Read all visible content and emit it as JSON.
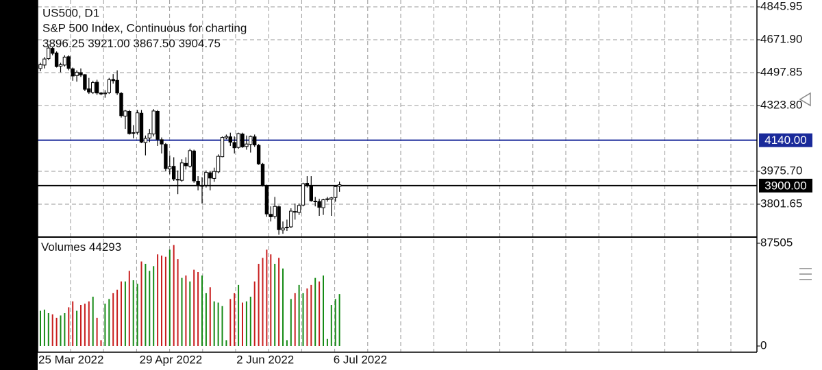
{
  "chart_data": {
    "type": "candlestick",
    "title": "US500, D1",
    "subtitle": "S&P 500 Index, Continuous for charting",
    "last_labels": [
      "3896.25",
      "3921.00",
      "3867.50",
      "3904.75"
    ],
    "up_color": "#ffffff",
    "down_color": "#000000",
    "categories": [
      "25 Mar 2022",
      null,
      null,
      null,
      null,
      null,
      null,
      null,
      null,
      null,
      null,
      null,
      null,
      null,
      null,
      null,
      null,
      null,
      null,
      null,
      null,
      null,
      null,
      null,
      null,
      "29 Apr 2022",
      null,
      null,
      null,
      null,
      null,
      null,
      null,
      null,
      null,
      null,
      null,
      null,
      null,
      null,
      null,
      null,
      null,
      null,
      null,
      null,
      null,
      null,
      null,
      "2 Jun 2022",
      null,
      null,
      null,
      null,
      null,
      null,
      null,
      null,
      null,
      null,
      null,
      null,
      null,
      null,
      null,
      null,
      null,
      null,
      null,
      null,
      null,
      null,
      null,
      "6 Jul 2022",
      null
    ],
    "open": [
      4520,
      4538,
      4572,
      4626,
      4602,
      4532,
      4538,
      4582,
      4518,
      4482,
      4498,
      4487,
      4412,
      4393,
      4447,
      4390,
      4386,
      4392,
      4462,
      4457,
      4388,
      4268,
      4293,
      4177,
      4182,
      4283,
      4128,
      4152,
      4173,
      4293,
      4143,
      4118,
      3988,
      4002,
      3933,
      3928,
      4018,
      4003,
      4083,
      3923,
      3898,
      3902,
      3968,
      3938,
      3973,
      4053,
      4153,
      4158,
      4128,
      4102,
      4173,
      4107,
      4118,
      4158,
      4113,
      4013,
      3898,
      3748,
      3737,
      3788,
      3665,
      3677,
      3682,
      3763,
      3758,
      3797,
      3912,
      3898,
      3818,
      3816,
      3783,
      3827,
      3828,
      3837,
      3896.25
    ],
    "high": [
      4550,
      4580,
      4640,
      4635,
      4610,
      4550,
      4590,
      4590,
      4525,
      4510,
      4520,
      4490,
      4470,
      4455,
      4460,
      4395,
      4405,
      4470,
      4490,
      4510,
      4395,
      4300,
      4300,
      4220,
      4300,
      4300,
      4165,
      4200,
      4305,
      4300,
      4155,
      4125,
      4060,
      4050,
      3980,
      4040,
      4050,
      4095,
      4090,
      3950,
      3945,
      3980,
      3975,
      3995,
      4065,
      4160,
      4170,
      4180,
      4160,
      4180,
      4180,
      4165,
      4165,
      4170,
      4120,
      4020,
      3905,
      3790,
      3840,
      3795,
      3710,
      3720,
      3780,
      3805,
      3805,
      3915,
      3950,
      3950,
      3840,
      3830,
      3830,
      3840,
      3840,
      3900,
      3921
    ],
    "low": [
      4505,
      4520,
      4565,
      4590,
      4525,
      4500,
      4530,
      4510,
      4455,
      4450,
      4475,
      4400,
      4385,
      4385,
      4380,
      4378,
      4365,
      4385,
      4440,
      4380,
      4260,
      4200,
      4170,
      4150,
      4170,
      4125,
      4060,
      4130,
      4160,
      4110,
      4070,
      3975,
      3960,
      3925,
      3855,
      3920,
      3985,
      3995,
      3915,
      3875,
      3805,
      3890,
      3875,
      3920,
      3965,
      4050,
      4145,
      4110,
      4070,
      4095,
      4100,
      4090,
      4075,
      4105,
      4010,
      3895,
      3735,
      3710,
      3725,
      3640,
      3645,
      3660,
      3675,
      3720,
      3745,
      3790,
      3890,
      3815,
      3790,
      3740,
      3745,
      3815,
      3740,
      3815,
      3867.5
    ],
    "close": [
      4540,
      4570,
      4628,
      4600,
      4530,
      4540,
      4580,
      4520,
      4480,
      4500,
      4485,
      4410,
      4395,
      4445,
      4390,
      4385,
      4390,
      4460,
      4455,
      4390,
      4270,
      4295,
      4175,
      4180,
      4285,
      4130,
      4150,
      4175,
      4295,
      4145,
      4120,
      3990,
      4000,
      3935,
      3930,
      4020,
      4005,
      4085,
      3925,
      3900,
      3900,
      3970,
      3940,
      3975,
      4055,
      4155,
      4160,
      4130,
      4100,
      4175,
      4105,
      4120,
      4160,
      4115,
      4015,
      3900,
      3750,
      3735,
      3790,
      3667,
      3675,
      3680,
      3765,
      3760,
      3795,
      3910,
      3900,
      3820,
      3818,
      3785,
      3825,
      3830,
      3835,
      3895,
      3904.75
    ],
    "ylim": [
      3631.2,
      4882.2
    ],
    "yticks": [
      4845.95,
      {
        "value": 4671.9,
        "label": "4671.90"
      },
      4497.85,
      {
        "value": 4323.8,
        "label": "4323.80"
      },
      {
        "value": 3975.7,
        "label": "3975.70"
      },
      3801.65
    ],
    "levels": [
      {
        "value": 4140,
        "label": "4140.00",
        "color": "#1a2a9a"
      },
      {
        "value": 3900,
        "label": "3900.00",
        "color": "#000000"
      }
    ],
    "grid": true,
    "volume": {
      "label": "Volumes",
      "up_color": "#158a15",
      "down_color": "#c81e1e",
      "values": [
        30000,
        31000,
        28000,
        27000,
        24000,
        26000,
        28000,
        33000,
        38000,
        30000,
        35000,
        36000,
        38000,
        42000,
        24000,
        5000,
        36000,
        40000,
        45000,
        48000,
        55000,
        55000,
        64000,
        56000,
        53000,
        72000,
        70000,
        64000,
        68000,
        78000,
        77000,
        76000,
        82000,
        86000,
        74000,
        58000,
        60000,
        55000,
        65000,
        63000,
        60000,
        45000,
        50000,
        38000,
        37000,
        34000,
        5000,
        40000,
        45000,
        52000,
        37000,
        38000,
        42000,
        55000,
        70000,
        75000,
        82000,
        78000,
        70000,
        75000,
        66000,
        5000,
        40000,
        45000,
        52000,
        45000,
        49000,
        52000,
        58000,
        55000,
        60000,
        6000,
        35000,
        40000,
        44293
      ],
      "ylim": [
        -4670,
        92170
      ],
      "yticks": [
        87505,
        0
      ]
    }
  }
}
